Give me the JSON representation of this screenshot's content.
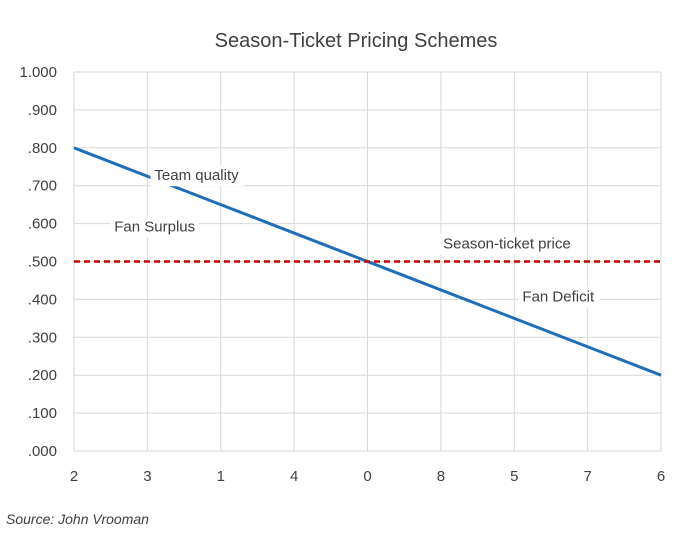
{
  "chart_data": {
    "type": "line",
    "title": "Season-Ticket Pricing Schemes",
    "categories": [
      "2",
      "3",
      "1",
      "4",
      "0",
      "8",
      "5",
      "7",
      "6"
    ],
    "y_tick_labels": [
      "1.000",
      ".900",
      ".800",
      ".700",
      ".600",
      ".500",
      ".400",
      ".300",
      ".200",
      ".100",
      ".000"
    ],
    "ylim": [
      0,
      1
    ],
    "grid": true,
    "series": [
      {
        "name": "Team quality",
        "color": "#1f6fb8",
        "style": "solid",
        "values": [
          0.8,
          0.725,
          0.65,
          0.575,
          0.5,
          0.425,
          0.35,
          0.275,
          0.2
        ]
      },
      {
        "name": "Season-ticket price",
        "color": "#c00000",
        "style": "dashed",
        "values": [
          0.5,
          0.5,
          0.5,
          0.5,
          0.5,
          0.5,
          0.5,
          0.5,
          0.5
        ]
      }
    ],
    "annotations": [
      {
        "text": "Team quality",
        "x_index": 1.67,
        "y": 0.725
      },
      {
        "text": "Fan Surplus",
        "x_index": 1.1,
        "y": 0.59
      },
      {
        "text": "Season-ticket price",
        "x_index": 5.9,
        "y": 0.545
      },
      {
        "text": "Fan Deficit",
        "x_index": 6.6,
        "y": 0.405
      }
    ]
  },
  "source": "Source: John Vrooman"
}
